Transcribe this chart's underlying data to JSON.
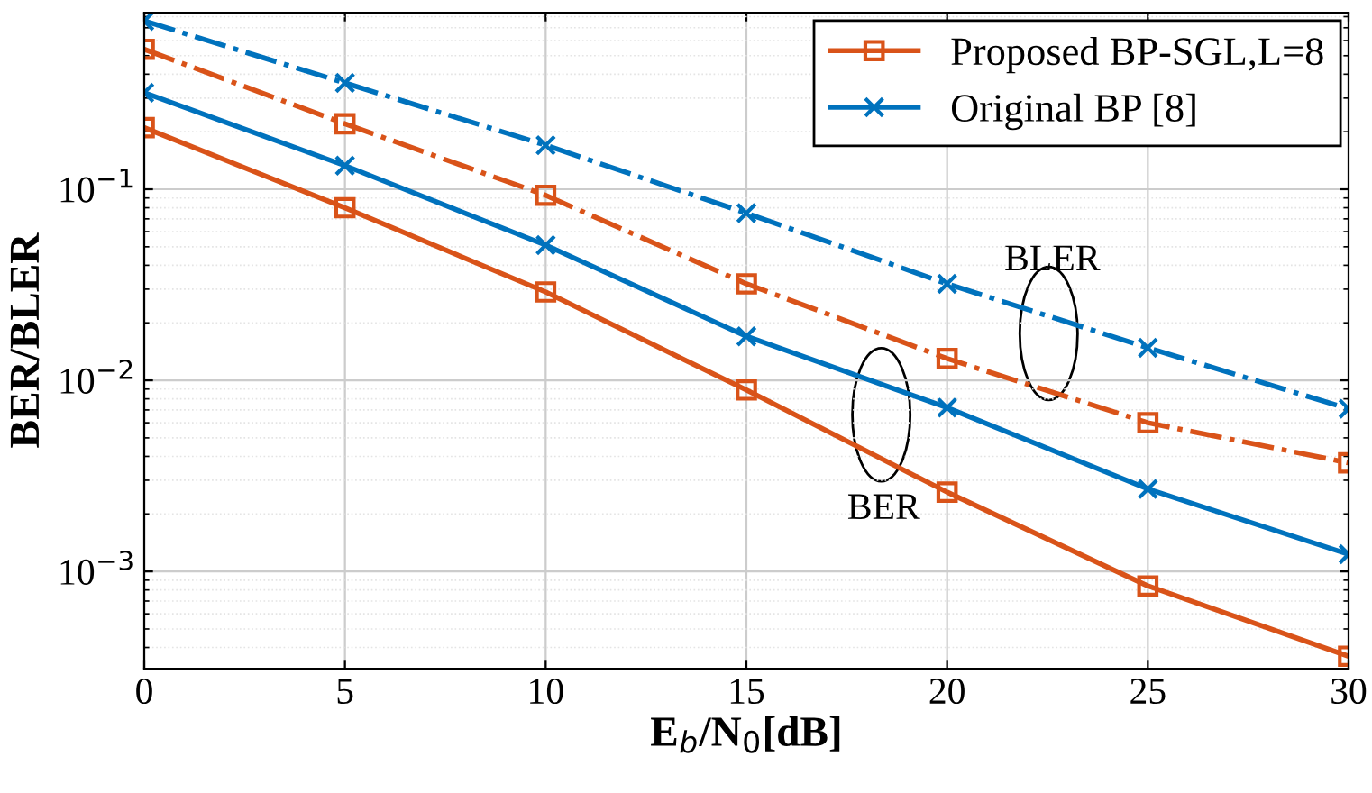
{
  "chart_data": {
    "type": "line",
    "xlabel": "E$_{b}$/N$_{0}$[dB]",
    "ylabel": "BER/BLER",
    "x": [
      0,
      5,
      10,
      15,
      20,
      25,
      30
    ],
    "series": [
      {
        "name": "Proposed BP-SGL,L=8",
        "color": "#d95319",
        "marker": "square",
        "line_style": "solid",
        "values": [
          0.21,
          0.08,
          0.029,
          0.0089,
          0.0026,
          0.00084,
          0.00036
        ]
      },
      {
        "name": "Original BP [8]",
        "color": "#0072bd",
        "marker": "cross",
        "line_style": "solid",
        "values": [
          0.32,
          0.133,
          0.051,
          0.017,
          0.0072,
          0.0027,
          0.00123
        ]
      },
      {
        "color": "#d95319",
        "marker": "square",
        "line_style": "dashdot",
        "values": [
          0.54,
          0.22,
          0.093,
          0.032,
          0.013,
          0.006,
          0.0037
        ]
      },
      {
        "color": "#0072bd",
        "marker": "cross",
        "line_style": "dashdot",
        "values": [
          0.76,
          0.36,
          0.17,
          0.075,
          0.032,
          0.0148,
          0.0071
        ]
      }
    ],
    "annotations": [
      "BER",
      "BLER"
    ],
    "log": "y",
    "xlim": [
      0,
      30
    ],
    "ylim": [
      0.00031,
      0.84
    ],
    "xticks": [
      0,
      5,
      10,
      15,
      20,
      25,
      30
    ],
    "yticks": [
      {
        "value": 0.001,
        "label": "10$^{−3}$"
      },
      {
        "value": 0.01,
        "label": "10$^{−2}$"
      },
      {
        "value": 0.1,
        "label": "10$^{−1}$"
      }
    ],
    "grid": true,
    "legend": "top right"
  }
}
